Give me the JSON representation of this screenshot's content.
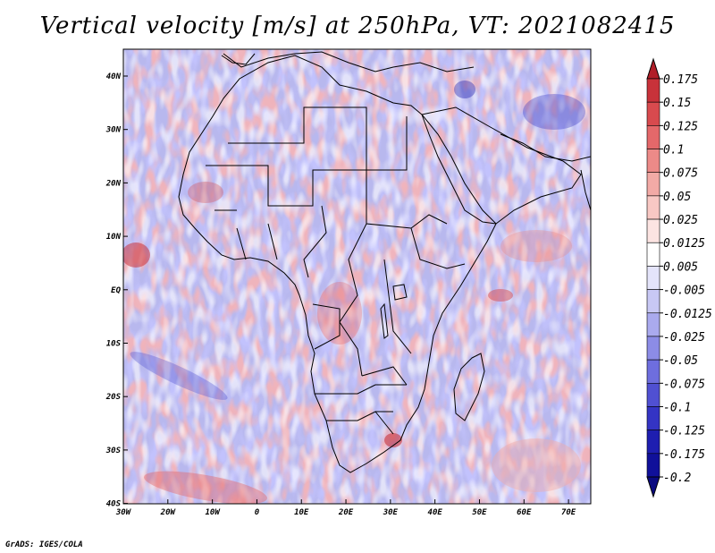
{
  "title": "Vertical velocity [m/s] at 250hPa, VT: 2021082415",
  "credit": "GrADS: IGES/COLA",
  "map": {
    "lon_labels": [
      "30W",
      "20W",
      "10W",
      "0",
      "10E",
      "20E",
      "30E",
      "40E",
      "50E",
      "60E",
      "70E"
    ],
    "lat_labels": [
      "40N",
      "30N",
      "20N",
      "10N",
      "EQ",
      "10S",
      "20S",
      "30S",
      "40S"
    ]
  },
  "colorbar": {
    "labels": [
      "0.175",
      "0.15",
      "0.125",
      "0.1",
      "0.075",
      "0.05",
      "0.025",
      "0.0125",
      "0.005",
      "-0.005",
      "-0.0125",
      "-0.025",
      "-0.05",
      "-0.075",
      "-0.1",
      "-0.125",
      "-0.175",
      "-0.2"
    ],
    "colors": [
      "#b01e28",
      "#c8323a",
      "#d84a4e",
      "#e4686a",
      "#ec8a88",
      "#f2aaa6",
      "#f8c8c4",
      "#fce4e2",
      "#ffffff",
      "#e4e4fa",
      "#c8c8f4",
      "#aaaaee",
      "#8c8ce6",
      "#6e6ede",
      "#5050d2",
      "#3434c4",
      "#1e1eb0",
      "#10109a",
      "#0a0a80"
    ]
  },
  "colors": {
    "background": "#ffffff",
    "field_mean": "#b4b4ec"
  }
}
